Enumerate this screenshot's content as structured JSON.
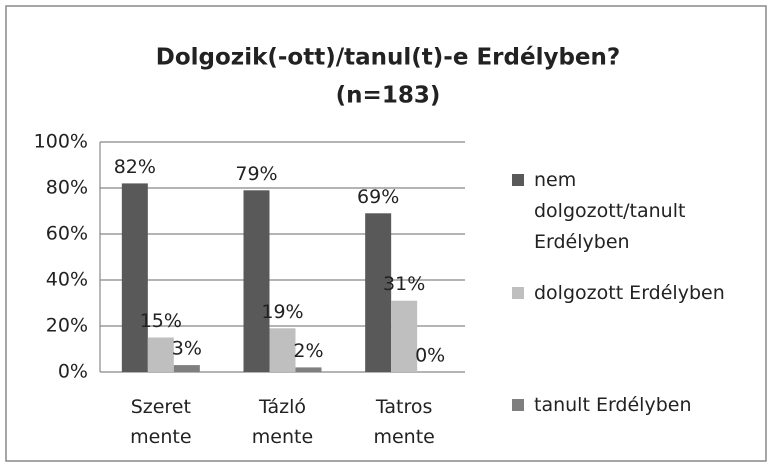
{
  "chart_data": {
    "type": "bar",
    "title": "Dolgozik(-ott)/tanul(t)-e Erdélyben?",
    "subtitle": "(n=183)",
    "categories": [
      "Szeret mente",
      "Tázló mente",
      "Tatros mente"
    ],
    "series": [
      {
        "name": "nem dolgozott/tanult Erdélyben",
        "color": "#595959",
        "values": [
          82,
          79,
          69
        ],
        "value_labels": [
          "82%",
          "79%",
          "69%"
        ]
      },
      {
        "name": "dolgozott Erdélyben",
        "color": "#bfbfbf",
        "values": [
          15,
          19,
          31
        ],
        "value_labels": [
          "15%",
          "19%",
          "31%"
        ]
      },
      {
        "name": "tanult Erdélyben",
        "color": "#7f7f7f",
        "values": [
          3,
          2,
          0
        ],
        "value_labels": [
          "3%",
          "2%",
          "0%"
        ]
      }
    ],
    "ylim": [
      0,
      100
    ],
    "yticks": [
      {
        "value": 0,
        "label": "0%"
      },
      {
        "value": 20,
        "label": "20%"
      },
      {
        "value": 40,
        "label": "40%"
      },
      {
        "value": 60,
        "label": "60%"
      },
      {
        "value": 80,
        "label": "80%"
      },
      {
        "value": 100,
        "label": "100%"
      }
    ],
    "grid": true,
    "legend": "right"
  }
}
